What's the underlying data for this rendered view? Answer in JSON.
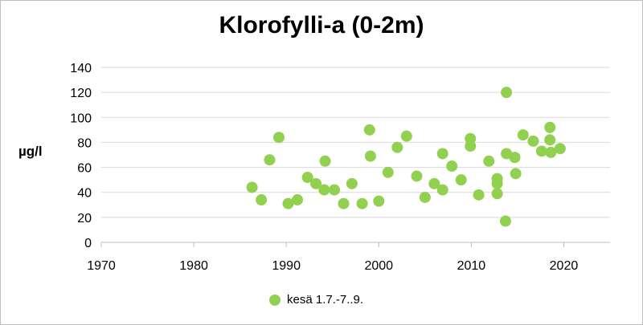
{
  "chart_data": {
    "type": "scatter",
    "title": "Klorofylli-a (0-2m)",
    "xlabel": "",
    "ylabel": "µg/l",
    "xlim": [
      1970,
      2025
    ],
    "ylim": [
      0,
      140
    ],
    "x_ticks": [
      1970,
      1980,
      1990,
      2000,
      2010,
      2020
    ],
    "y_ticks": [
      0,
      20,
      40,
      60,
      80,
      100,
      120,
      140
    ],
    "grid": "horizontal",
    "legend_position": "bottom",
    "marker_color": "#92d050",
    "series": [
      {
        "name": "kesä 1.7.-7..9.",
        "points": [
          [
            1986.3,
            44
          ],
          [
            1987.3,
            34
          ],
          [
            1988.2,
            66
          ],
          [
            1989.2,
            84
          ],
          [
            1990.2,
            31
          ],
          [
            1991.2,
            34
          ],
          [
            1992.3,
            52
          ],
          [
            1993.2,
            47
          ],
          [
            1994.1,
            42
          ],
          [
            1994.2,
            65
          ],
          [
            1995.2,
            42
          ],
          [
            1996.2,
            31
          ],
          [
            1997.1,
            47
          ],
          [
            1998.2,
            31
          ],
          [
            1999.0,
            90
          ],
          [
            1999.1,
            69
          ],
          [
            2000.0,
            33
          ],
          [
            2001.0,
            56
          ],
          [
            2002.0,
            76
          ],
          [
            2003.0,
            85
          ],
          [
            2004.1,
            53
          ],
          [
            2005.0,
            36
          ],
          [
            2006.0,
            47
          ],
          [
            2006.9,
            42
          ],
          [
            2006.9,
            71
          ],
          [
            2007.9,
            61
          ],
          [
            2008.9,
            50
          ],
          [
            2009.9,
            83
          ],
          [
            2009.9,
            77
          ],
          [
            2010.8,
            38
          ],
          [
            2011.9,
            65
          ],
          [
            2012.8,
            51
          ],
          [
            2012.8,
            47
          ],
          [
            2012.8,
            39
          ],
          [
            2013.7,
            17
          ],
          [
            2013.8,
            120
          ],
          [
            2013.8,
            71
          ],
          [
            2014.7,
            68
          ],
          [
            2014.8,
            55
          ],
          [
            2015.6,
            86
          ],
          [
            2016.7,
            81
          ],
          [
            2017.6,
            73
          ],
          [
            2018.5,
            92
          ],
          [
            2018.5,
            82
          ],
          [
            2018.6,
            72
          ],
          [
            2019.6,
            75
          ]
        ]
      }
    ]
  }
}
